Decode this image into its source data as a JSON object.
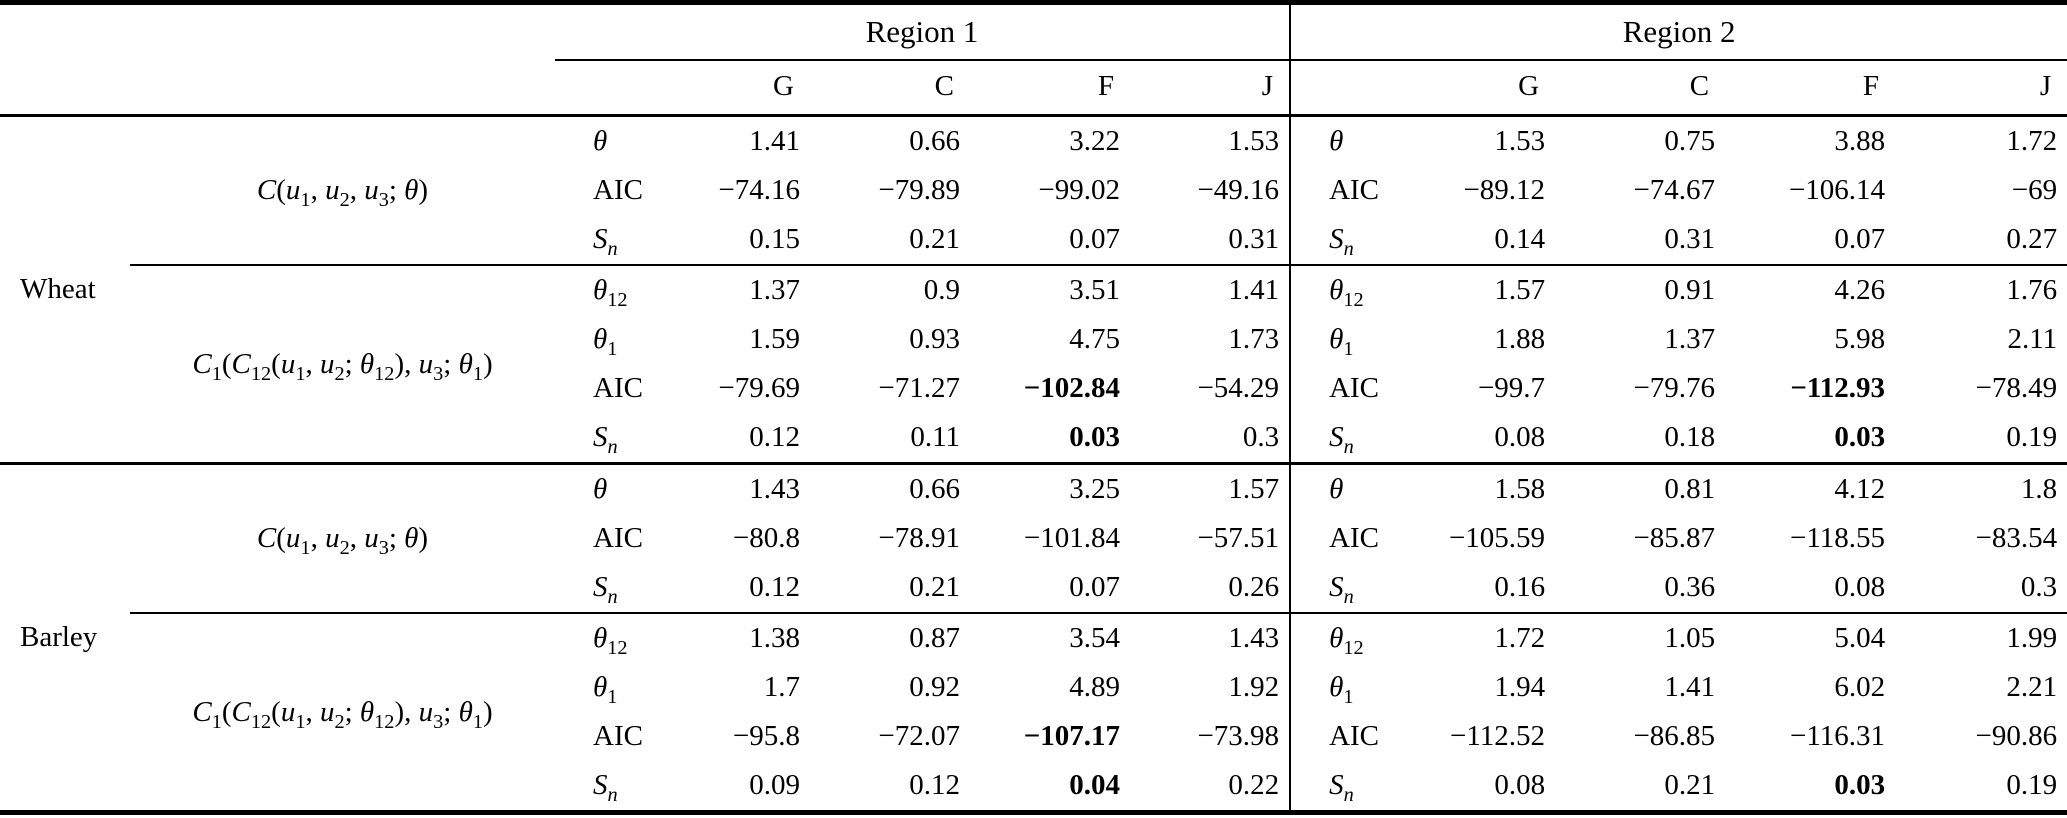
{
  "table": {
    "regions": [
      {
        "label": "Region 1"
      },
      {
        "label": "Region 2"
      }
    ],
    "copula_columns": [
      "G",
      "C",
      "F",
      "J"
    ],
    "groups": [
      {
        "label": "Wheat",
        "models": [
          {
            "formula": "<i>C</i>(<i>u</i><sub>1</sub>, <i>u</i><sub>2</sub>, <i>u</i><sub>3</sub>; <i>θ</i>)",
            "rows": [
              {
                "stat": "<i>θ</i>",
                "r1": [
                  "1.41",
                  "0.66",
                  "3.22",
                  "1.53"
                ],
                "r2": [
                  "1.53",
                  "0.75",
                  "3.88",
                  "1.72"
                ]
              },
              {
                "stat": "AIC",
                "r1": [
                  "−74.16",
                  "−79.89",
                  "−99.02",
                  "−49.16"
                ],
                "r2": [
                  "−89.12",
                  "−74.67",
                  "−106.14",
                  "−69"
                ]
              },
              {
                "stat": "<i>S</i><sub><i>n</i></sub>",
                "r1": [
                  "0.15",
                  "0.21",
                  "0.07",
                  "0.31"
                ],
                "r2": [
                  "0.14",
                  "0.31",
                  "0.07",
                  "0.27"
                ]
              }
            ]
          },
          {
            "formula": "<i>C</i><sub>1</sub>(<i>C</i><sub>12</sub>(<i>u</i><sub>1</sub>, <i>u</i><sub>2</sub>; <i>θ</i><sub>12</sub>), <i>u</i><sub>3</sub>; <i>θ</i><sub>1</sub>)",
            "rows": [
              {
                "stat": "<i>θ</i><sub>12</sub>",
                "r1": [
                  "1.37",
                  "0.9",
                  "3.51",
                  "1.41"
                ],
                "r2": [
                  "1.57",
                  "0.91",
                  "4.26",
                  "1.76"
                ]
              },
              {
                "stat": "<i>θ</i><sub>1</sub>",
                "r1": [
                  "1.59",
                  "0.93",
                  "4.75",
                  "1.73"
                ],
                "r2": [
                  "1.88",
                  "1.37",
                  "5.98",
                  "2.11"
                ]
              },
              {
                "stat": "AIC",
                "r1": [
                  "−79.69",
                  "−71.27",
                  "<b>−102.84</b>",
                  "−54.29"
                ],
                "r2": [
                  "−99.7",
                  "−79.76",
                  "<b>−112.93</b>",
                  "−78.49"
                ]
              },
              {
                "stat": "<i>S</i><sub><i>n</i></sub>",
                "r1": [
                  "0.12",
                  "0.11",
                  "<b>0.03</b>",
                  "0.3"
                ],
                "r2": [
                  "0.08",
                  "0.18",
                  "<b>0.03</b>",
                  "0.19"
                ]
              }
            ]
          }
        ]
      },
      {
        "label": "Barley",
        "models": [
          {
            "formula": "<i>C</i>(<i>u</i><sub>1</sub>, <i>u</i><sub>2</sub>, <i>u</i><sub>3</sub>; <i>θ</i>)",
            "rows": [
              {
                "stat": "<i>θ</i>",
                "r1": [
                  "1.43",
                  "0.66",
                  "3.25",
                  "1.57"
                ],
                "r2": [
                  "1.58",
                  "0.81",
                  "4.12",
                  "1.8"
                ]
              },
              {
                "stat": "AIC",
                "r1": [
                  "−80.8",
                  "−78.91",
                  "−101.84",
                  "−57.51"
                ],
                "r2": [
                  "−105.59",
                  "−85.87",
                  "−118.55",
                  "−83.54"
                ]
              },
              {
                "stat": "<i>S</i><sub><i>n</i></sub>",
                "r1": [
                  "0.12",
                  "0.21",
                  "0.07",
                  "0.26"
                ],
                "r2": [
                  "0.16",
                  "0.36",
                  "0.08",
                  "0.3"
                ]
              }
            ]
          },
          {
            "formula": "<i>C</i><sub>1</sub>(<i>C</i><sub>12</sub>(<i>u</i><sub>1</sub>, <i>u</i><sub>2</sub>; <i>θ</i><sub>12</sub>), <i>u</i><sub>3</sub>; <i>θ</i><sub>1</sub>)",
            "rows": [
              {
                "stat": "<i>θ</i><sub>12</sub>",
                "r1": [
                  "1.38",
                  "0.87",
                  "3.54",
                  "1.43"
                ],
                "r2": [
                  "1.72",
                  "1.05",
                  "5.04",
                  "1.99"
                ]
              },
              {
                "stat": "<i>θ</i><sub>1</sub>",
                "r1": [
                  "1.7",
                  "0.92",
                  "4.89",
                  "1.92"
                ],
                "r2": [
                  "1.94",
                  "1.41",
                  "6.02",
                  "2.21"
                ]
              },
              {
                "stat": "AIC",
                "r1": [
                  "−95.8",
                  "−72.07",
                  "<b>−107.17</b>",
                  "−73.98"
                ],
                "r2": [
                  "−112.52",
                  "−86.85",
                  "−116.31",
                  "−90.86"
                ]
              },
              {
                "stat": "<i>S</i><sub><i>n</i></sub>",
                "r1": [
                  "0.09",
                  "0.12",
                  "<b>0.04</b>",
                  "0.22"
                ],
                "r2": [
                  "0.08",
                  "0.21",
                  "<b>0.03</b>",
                  "0.19"
                ]
              }
            ]
          }
        ]
      }
    ]
  }
}
